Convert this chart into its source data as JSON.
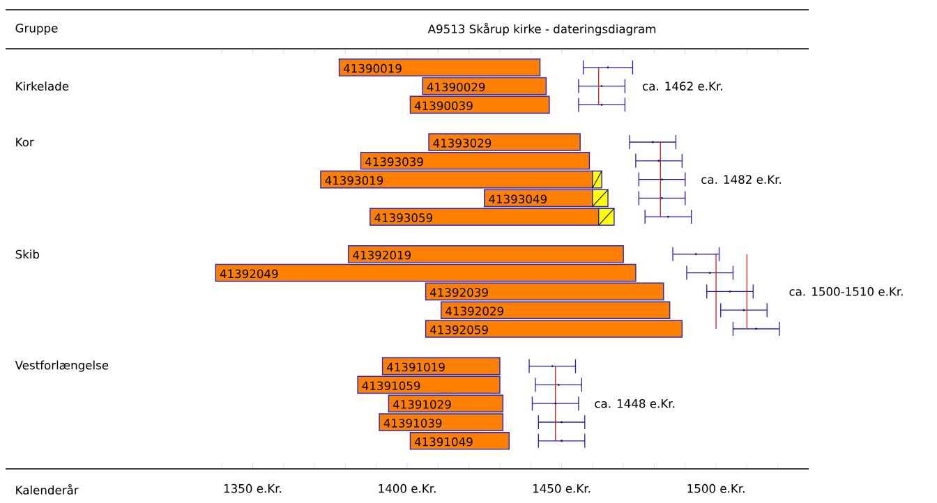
{
  "chart_data": {
    "type": "bar",
    "orientation": "horizontal",
    "title": "A9513 Skårup kirke - dateringsdiagram",
    "ylabel": "Gruppe",
    "xlabel": "Kalenderår",
    "categories": [
      "41390019",
      "41390029",
      "41390039",
      null,
      "41393029",
      "41393039",
      "41393019",
      "41393049",
      "41393059",
      null,
      "41392019",
      "41392049",
      "41392039",
      "41392029",
      "41392059",
      null,
      "41391019",
      "41391059",
      "41391029",
      "41391039",
      "41391049"
    ],
    "series": [
      {
        "color": "#ff8000",
        "base": [
          1378,
          1405,
          1401,
          null,
          1407,
          1385,
          1372,
          1425,
          1388,
          null,
          1381,
          1338,
          1406,
          1411,
          1406,
          null,
          1392,
          1384,
          1394,
          1391,
          1401
        ],
        "values": [
          65,
          40,
          45,
          null,
          49,
          74,
          88,
          35,
          74,
          null,
          89,
          136,
          77,
          74,
          83,
          null,
          38,
          46,
          37,
          40,
          32
        ]
      },
      {
        "color": "#ffff00",
        "base": [
          null,
          null,
          null,
          null,
          null,
          null,
          1460,
          1460,
          1462,
          null,
          null,
          null,
          null,
          null,
          null,
          null,
          null,
          null,
          null,
          null,
          null
        ],
        "values": [
          null,
          null,
          null,
          null,
          null,
          null,
          3,
          5,
          5,
          null,
          null,
          null,
          null,
          null,
          null,
          null,
          null,
          null,
          null,
          null,
          null
        ]
      },
      {
        "type": "scatter",
        "color": "#2222b0",
        "values": [
          1465,
          1463,
          1463,
          null,
          1479.5,
          1481.5,
          1482.5,
          1482.5,
          1484.5,
          null,
          1493.5,
          1498,
          1504.5,
          1509,
          1513,
          null,
          1447,
          1449,
          1448,
          1450,
          1450
        ],
        "errors": [
          8,
          7.5,
          7.5,
          null,
          7.5,
          7.5,
          7.5,
          7.5,
          7.5,
          null,
          7.5,
          7.5,
          7.5,
          7.5,
          7.5,
          null,
          7.5,
          7.5,
          7.5,
          7.5,
          7.5
        ]
      },
      {
        "type": "line",
        "color": "#cc2020",
        "values": [
          1462,
          1462,
          1462,
          null,
          null,
          null,
          null,
          null,
          null,
          null,
          null,
          null,
          null,
          null,
          null,
          null,
          null,
          null,
          null,
          null,
          null
        ]
      },
      {
        "type": "line",
        "color": "#cc2020",
        "values": [
          null,
          null,
          null,
          null,
          1482,
          1482,
          1482,
          1482,
          1482,
          null,
          null,
          null,
          null,
          null,
          null,
          null,
          null,
          null,
          null,
          null,
          null
        ]
      },
      {
        "type": "line",
        "color": "#cc2020",
        "values": [
          null,
          null,
          null,
          null,
          null,
          null,
          null,
          null,
          null,
          null,
          1500,
          1500,
          1500,
          1500,
          1500,
          null,
          null,
          null,
          null,
          null,
          null
        ]
      },
      {
        "type": "line",
        "color": "#cc2020",
        "values": [
          null,
          null,
          null,
          null,
          null,
          null,
          null,
          null,
          null,
          null,
          1510,
          1510,
          1510,
          1510,
          1510,
          null,
          null,
          null,
          null,
          null,
          null
        ]
      },
      {
        "type": "line",
        "color": "#cc2020",
        "values": [
          null,
          null,
          null,
          null,
          null,
          null,
          null,
          null,
          null,
          null,
          null,
          null,
          null,
          null,
          null,
          null,
          1448,
          1448,
          1448,
          1448,
          1448
        ]
      }
    ],
    "xlim": [
      1270,
      1530
    ],
    "xticks": [
      {
        "value": 1340,
        "label": null
      },
      {
        "value": 1350,
        "label": "1350 e.Kr."
      },
      {
        "value": 1360,
        "label": null
      },
      {
        "value": 1370,
        "label": null
      },
      {
        "value": 1380,
        "label": null
      },
      {
        "value": 1390,
        "label": null
      },
      {
        "value": 1400,
        "label": "1400 e.Kr."
      },
      {
        "value": 1410,
        "label": null
      },
      {
        "value": 1420,
        "label": null
      },
      {
        "value": 1430,
        "label": null
      },
      {
        "value": 1440,
        "label": null
      },
      {
        "value": 1450,
        "label": "1450 e.Kr."
      },
      {
        "value": 1460,
        "label": null
      },
      {
        "value": 1470,
        "label": null
      },
      {
        "value": 1480,
        "label": null
      },
      {
        "value": 1490,
        "label": null
      },
      {
        "value": 1500,
        "label": "1500 e.Kr."
      },
      {
        "value": 1510,
        "label": null
      },
      {
        "value": 1520,
        "label": null
      }
    ],
    "annotations": [
      "Kirkelade",
      "Kor",
      "Skib",
      "Vestforlængelse",
      "ca. 1462 e.Kr.",
      "ca. 1482 e.Kr.",
      "ca. 1500-1510 e.Kr.",
      "ca. 1448 e.Kr."
    ]
  }
}
